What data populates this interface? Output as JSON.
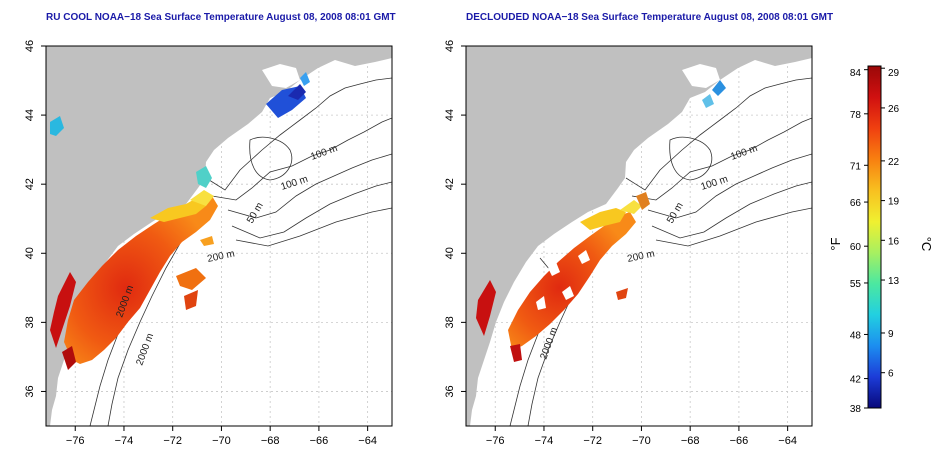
{
  "panels": [
    {
      "title": "RU COOL NOAA−18 Sea Surface Temperature August 08, 2008 08:01 GMT",
      "contour_labels": [
        "100 m",
        "100 m",
        "50 m",
        "200 m",
        "2000 m",
        "2000 m"
      ]
    },
    {
      "title": "DECLOUDED NOAA−18 Sea Surface Temperature August 08, 2008 08:01 GMT",
      "contour_labels": [
        "100 m",
        "100 m",
        "50 m",
        "200 m",
        "2000 m"
      ]
    }
  ],
  "axes": {
    "x_ticks": [
      "−76",
      "−74",
      "−72",
      "−70",
      "−68",
      "−66",
      "−64"
    ],
    "y_ticks": [
      "36",
      "38",
      "40",
      "42",
      "44",
      "46"
    ],
    "x_range": [
      -77.2,
      -63.0
    ],
    "y_range": [
      35.0,
      46.0
    ]
  },
  "colorbar": {
    "f_label": "°F",
    "c_label": "°C",
    "f_ticks": [
      "84",
      "78",
      "71",
      "66",
      "60",
      "55",
      "48",
      "42",
      "38"
    ],
    "c_ticks": [
      "29",
      "26",
      "22",
      "19",
      "16",
      "13",
      "9",
      "6"
    ],
    "colors": [
      "#08087a",
      "#1c3cd8",
      "#1c8ef0",
      "#22d0e0",
      "#4ce8a0",
      "#a8f060",
      "#f0f030",
      "#f8c020",
      "#f88010",
      "#f04010",
      "#d01010",
      "#9a0808"
    ]
  },
  "colors": {
    "land": "#c0c0c0",
    "ocean": "#ffffff",
    "contour": "#333333",
    "grid": "#c8c8c8",
    "title": "#1a1aa8"
  }
}
